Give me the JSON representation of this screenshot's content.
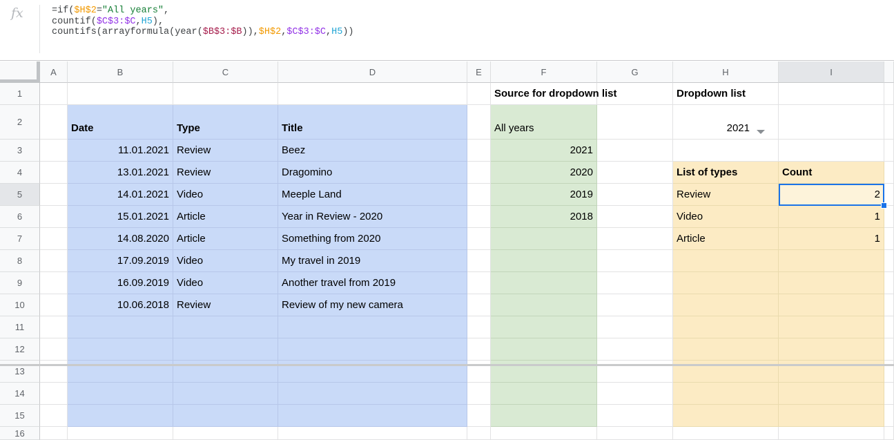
{
  "formula_bar": {
    "fx_label": "fx",
    "token_colors": {
      "default": "#3d4043",
      "orange": "#f29900",
      "green": "#188038",
      "purple": "#9334e6",
      "cyan": "#23a6d5",
      "pink": "#a61d4c"
    },
    "lines": [
      [
        {
          "t": "=if(",
          "c": "default"
        },
        {
          "t": "$H$2",
          "c": "orange"
        },
        {
          "t": "=",
          "c": "default"
        },
        {
          "t": "\"All years\"",
          "c": "green"
        },
        {
          "t": ",",
          "c": "default"
        }
      ],
      [
        {
          "t": "countif(",
          "c": "default"
        },
        {
          "t": "$C$3:$C",
          "c": "purple"
        },
        {
          "t": ",",
          "c": "default"
        },
        {
          "t": "H5",
          "c": "cyan"
        },
        {
          "t": "),",
          "c": "default"
        }
      ],
      [
        {
          "t": "countifs(arrayformula(year(",
          "c": "default"
        },
        {
          "t": "$B$3:$B",
          "c": "pink"
        },
        {
          "t": ")),",
          "c": "default"
        },
        {
          "t": "$H$2",
          "c": "orange"
        },
        {
          "t": ",",
          "c": "default"
        },
        {
          "t": "$C$3:$C",
          "c": "purple"
        },
        {
          "t": ",",
          "c": "default"
        },
        {
          "t": "H5",
          "c": "cyan"
        },
        {
          "t": "))",
          "c": "default"
        }
      ]
    ]
  },
  "grid": {
    "column_headers": [
      "A",
      "B",
      "C",
      "D",
      "E",
      "F",
      "G",
      "H",
      "I"
    ],
    "row_headers": [
      "1",
      "2",
      "3",
      "4",
      "5",
      "6",
      "7",
      "8",
      "9",
      "10",
      "11",
      "12",
      "13",
      "14",
      "15",
      "16"
    ],
    "selection": {
      "cell": "I5",
      "row": "5",
      "column": "I"
    },
    "colors": {
      "fill_blue": "#c9daf8",
      "fill_green": "#d9ead3",
      "fill_yellow": "#fcebc4",
      "selected_cell_fill": "#fdf3da",
      "selection_border": "#1a73e8",
      "gridline_blue": "#b7c7e9",
      "gridline_green": "#c2d5ba",
      "gridline_yellow": "#eadbae"
    },
    "fills": [
      {
        "range": "B2:D15",
        "color": "fill_blue",
        "line": "gridline_blue"
      },
      {
        "range": "F2:F15",
        "color": "fill_green",
        "line": "gridline_green"
      },
      {
        "range": "H4:I15",
        "color": "fill_yellow",
        "line": "gridline_yellow"
      }
    ],
    "cells": [
      {
        "ref": "B2",
        "text": "Date",
        "bold": true
      },
      {
        "ref": "C2",
        "text": "Type",
        "bold": true
      },
      {
        "ref": "D2",
        "text": "Title",
        "bold": true
      },
      {
        "ref": "B3",
        "text": "11.01.2021",
        "align": "right"
      },
      {
        "ref": "C3",
        "text": "Review"
      },
      {
        "ref": "D3",
        "text": "Beez"
      },
      {
        "ref": "B4",
        "text": "13.01.2021",
        "align": "right"
      },
      {
        "ref": "C4",
        "text": "Review"
      },
      {
        "ref": "D4",
        "text": "Dragomino"
      },
      {
        "ref": "B5",
        "text": "14.01.2021",
        "align": "right"
      },
      {
        "ref": "C5",
        "text": "Video"
      },
      {
        "ref": "D5",
        "text": "Meeple Land"
      },
      {
        "ref": "B6",
        "text": "15.01.2021",
        "align": "right"
      },
      {
        "ref": "C6",
        "text": "Article"
      },
      {
        "ref": "D6",
        "text": "Year in Review - 2020"
      },
      {
        "ref": "B7",
        "text": "14.08.2020",
        "align": "right"
      },
      {
        "ref": "C7",
        "text": "Article"
      },
      {
        "ref": "D7",
        "text": "Something from 2020"
      },
      {
        "ref": "B8",
        "text": "17.09.2019",
        "align": "right"
      },
      {
        "ref": "C8",
        "text": "Video"
      },
      {
        "ref": "D8",
        "text": "My travel in 2019"
      },
      {
        "ref": "B9",
        "text": "16.09.2019",
        "align": "right"
      },
      {
        "ref": "C9",
        "text": "Video"
      },
      {
        "ref": "D9",
        "text": "Another travel from 2019"
      },
      {
        "ref": "B10",
        "text": "10.06.2018",
        "align": "right"
      },
      {
        "ref": "C10",
        "text": "Review"
      },
      {
        "ref": "D10",
        "text": "Review of my new camera"
      },
      {
        "ref": "F1",
        "text": "Source for dropdown list",
        "bold": true,
        "spill": true
      },
      {
        "ref": "H1",
        "text": "Dropdown list",
        "bold": true,
        "spill": true
      },
      {
        "ref": "F2",
        "text": "All years"
      },
      {
        "ref": "F3",
        "text": "2021",
        "align": "right"
      },
      {
        "ref": "F4",
        "text": "2020",
        "align": "right"
      },
      {
        "ref": "F5",
        "text": "2019",
        "align": "right"
      },
      {
        "ref": "F6",
        "text": "2018",
        "align": "right"
      },
      {
        "ref": "H2",
        "text": "2021",
        "align": "right",
        "dropdown": true
      },
      {
        "ref": "H4",
        "text": "List of types",
        "bold": true
      },
      {
        "ref": "I4",
        "text": "Count",
        "bold": true
      },
      {
        "ref": "H5",
        "text": "Review"
      },
      {
        "ref": "I5",
        "text": "2",
        "align": "right"
      },
      {
        "ref": "H6",
        "text": "Video"
      },
      {
        "ref": "I6",
        "text": "1",
        "align": "right"
      },
      {
        "ref": "H7",
        "text": "Article"
      },
      {
        "ref": "I7",
        "text": "1",
        "align": "right"
      }
    ]
  }
}
